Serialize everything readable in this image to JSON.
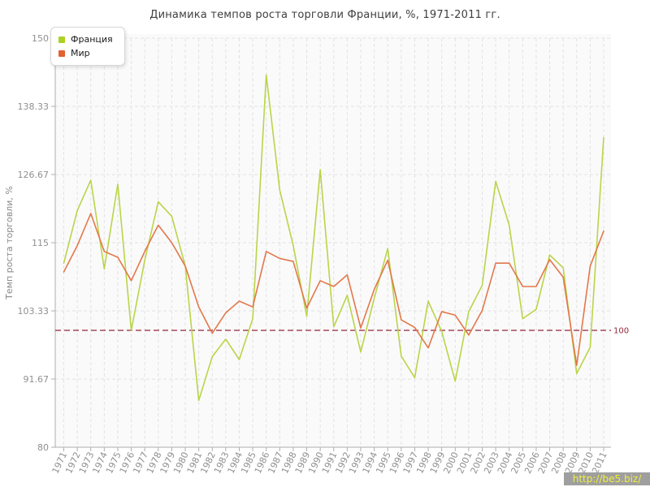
{
  "title": "Динамика темпов роста торговли Франции, %, 1971-2011 гг.",
  "watermark": "http://be5.biz/",
  "legend": {
    "items": [
      {
        "label": "Франция",
        "color": "#abd122"
      },
      {
        "label": "Мир",
        "color": "#e2612e"
      }
    ]
  },
  "chart_data": {
    "type": "line",
    "title": "Динамика темпов роста торговли Франции, %, 1971-2011 гг.",
    "xlabel": "",
    "ylabel": "Темп роста торговли, %",
    "ylim": [
      80,
      150
    ],
    "yticks": [
      80,
      91.67,
      103.33,
      115,
      126.67,
      138.33,
      150
    ],
    "ytick_labels": [
      "80",
      "91.67",
      "103.33",
      "115",
      "126.67",
      "138.33",
      "150"
    ],
    "grid": true,
    "legend_position": "top-left",
    "x": [
      1971,
      1972,
      1973,
      1974,
      1975,
      1976,
      1977,
      1978,
      1979,
      1980,
      1981,
      1982,
      1983,
      1984,
      1985,
      1986,
      1987,
      1988,
      1989,
      1990,
      1991,
      1992,
      1993,
      1994,
      1995,
      1996,
      1997,
      1998,
      1999,
      2000,
      2001,
      2002,
      2003,
      2004,
      2005,
      2006,
      2007,
      2008,
      2009,
      2010,
      2011
    ],
    "series": [
      {
        "name": "Франция",
        "color": "#b9d548",
        "values": [
          111.5,
          120.5,
          125.7,
          110.5,
          125,
          100,
          112,
          122,
          119.5,
          111,
          88,
          95.5,
          98.5,
          95,
          102,
          143.7,
          124,
          114.5,
          102.4,
          127.5,
          100.6,
          106,
          96.3,
          105.5,
          114,
          95.6,
          91.9,
          105,
          99.8,
          91.3,
          103.2,
          107.7,
          125.5,
          118,
          102,
          103.6,
          112.9,
          110.7,
          92.6,
          97.1,
          133
        ]
      },
      {
        "name": "Мир",
        "color": "#e3774a",
        "values": [
          110,
          114.5,
          120,
          113.5,
          112.5,
          108.5,
          113.5,
          118,
          115,
          111,
          104,
          99.5,
          103,
          105,
          104,
          113.5,
          112.3,
          111.8,
          103.8,
          108.5,
          107.5,
          109.5,
          100.4,
          107,
          112,
          101.8,
          100.5,
          97,
          103.2,
          102.6,
          99.2,
          103.4,
          111.5,
          111.5,
          107.5,
          107.5,
          112.1,
          109.1,
          94,
          111,
          117
        ]
      }
    ],
    "reference_line": {
      "value": 100,
      "label": "100",
      "color": "#932639"
    }
  },
  "style": {
    "plot_bg": "#fafafa",
    "grid_color": "#e2e2e2",
    "axis_color": "#adadad",
    "tick_label_color": "#909090"
  }
}
